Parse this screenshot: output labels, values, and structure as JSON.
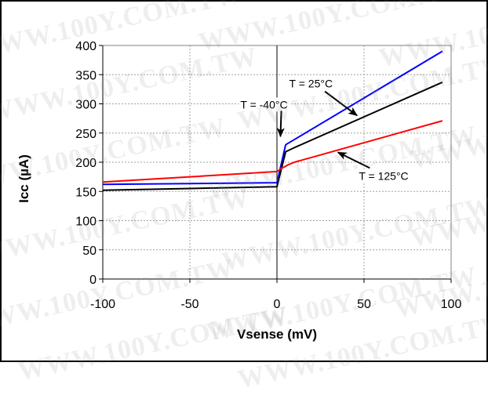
{
  "watermark": "WWW.100Y.COM.TW",
  "chart_data": {
    "type": "line",
    "title": "",
    "xlabel": "Vsense (mV)",
    "ylabel": "Icc (µA)",
    "xlim": [
      -100,
      100
    ],
    "ylim": [
      0,
      400
    ],
    "xticks": [
      -100,
      -50,
      0,
      50,
      100
    ],
    "yticks": [
      0,
      50,
      100,
      150,
      200,
      250,
      300,
      350,
      400
    ],
    "grid": true,
    "legend": "none",
    "series": [
      {
        "color": "#0000ff",
        "x": [
          -100,
          0,
          5,
          95
        ],
        "y": [
          162,
          165,
          230,
          390
        ]
      },
      {
        "color": "#000000",
        "x": [
          -100,
          0,
          5,
          10,
          95
        ],
        "y": [
          152,
          158,
          218,
          225,
          337
        ]
      },
      {
        "color": "#ff0000",
        "x": [
          -100,
          0,
          3,
          6,
          10,
          95
        ],
        "y": [
          166,
          184,
          190,
          195,
          200,
          271
        ]
      }
    ],
    "annotations": [
      {
        "text": "T = -40°C",
        "label_x": -21,
        "label_y": 292,
        "point_x": 2,
        "point_y": 244
      },
      {
        "text": "T = 25°C",
        "label_x": 7,
        "label_y": 328,
        "point_x": 46,
        "point_y": 280
      },
      {
        "text": "T = 125°C",
        "label_x": 47,
        "label_y": 170,
        "point_x": 35,
        "point_y": 217
      }
    ]
  }
}
